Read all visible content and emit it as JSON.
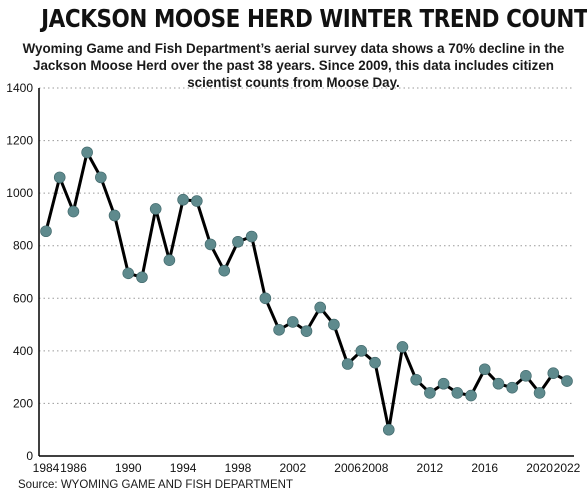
{
  "title": "JACKSON MOOSE HERD WINTER TREND COUNT",
  "subtitle": "Wyoming Game and Fish Department’s aerial survey data shows a 70% decline in the Jackson Moose Herd over the past 38 years. Since 2009, this data includes citizen scientist counts from Moose Day.",
  "source": "Source: WYOMING GAME AND FISH DEPARTMENT",
  "colors": {
    "line": "#000000",
    "marker": "#5e8a8d",
    "grid": "#9a9a9a",
    "axis": "#000000"
  },
  "chart_data": {
    "type": "line",
    "title": "JACKSON MOOSE HERD WINTER TREND COUNT",
    "xlabel": "",
    "ylabel": "",
    "xlim": [
      1984,
      2023
    ],
    "ylim": [
      0,
      1400
    ],
    "x_ticks": [
      1984,
      1986,
      1990,
      1994,
      1998,
      2002,
      2006,
      2008,
      2012,
      2016,
      2020,
      2022
    ],
    "y_ticks": [
      0,
      200,
      400,
      600,
      800,
      1000,
      1200,
      1400
    ],
    "grid": "horizontal dotted",
    "x": [
      1984,
      1985,
      1986,
      1987,
      1988,
      1989,
      1990,
      1991,
      1992,
      1993,
      1994,
      1995,
      1996,
      1997,
      1998,
      1999,
      2000,
      2001,
      2002,
      2003,
      2004,
      2005,
      2006,
      2007,
      2008,
      2009,
      2010,
      2011,
      2012,
      2013,
      2014,
      2015,
      2016,
      2017,
      2018,
      2019,
      2020,
      2021,
      2022
    ],
    "values": [
      855,
      1060,
      930,
      1155,
      1060,
      915,
      695,
      680,
      940,
      745,
      975,
      970,
      805,
      705,
      815,
      835,
      600,
      480,
      510,
      475,
      565,
      500,
      350,
      400,
      355,
      100,
      415,
      290,
      240,
      275,
      240,
      230,
      330,
      275,
      260,
      305,
      240,
      315,
      285
    ]
  }
}
